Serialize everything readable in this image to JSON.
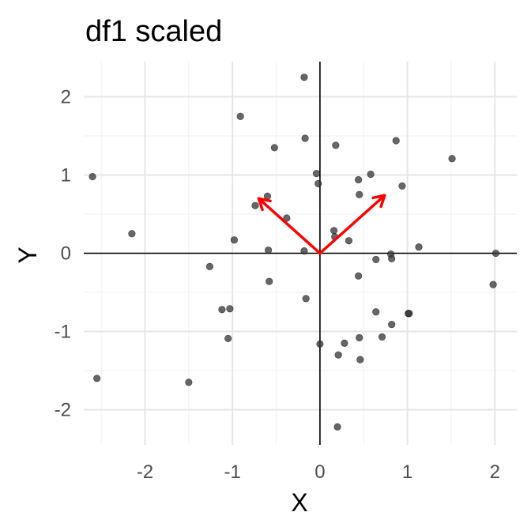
{
  "chart_data": {
    "type": "scatter",
    "title": "df1 scaled",
    "xlabel": "X",
    "ylabel": "Y",
    "xlim": [
      -2.7,
      2.25
    ],
    "ylim": [
      -2.45,
      2.45
    ],
    "x_ticks": [
      -2,
      -1,
      0,
      1,
      2
    ],
    "y_ticks": [
      -2,
      -1,
      0,
      1,
      2
    ],
    "x_tick_labels": [
      "-2",
      "-1",
      "0",
      "1",
      "2"
    ],
    "y_tick_labels": [
      "-2",
      "-1",
      "0",
      "1",
      "2"
    ],
    "grid": true,
    "reference_lines": {
      "x": 0,
      "y": 0
    },
    "point_color": "#333333",
    "arrow_color": "#ff0000",
    "points": [
      {
        "x": -2.6,
        "y": 0.98
      },
      {
        "x": -2.55,
        "y": -1.6
      },
      {
        "x": -2.15,
        "y": 0.25
      },
      {
        "x": -1.5,
        "y": -1.65
      },
      {
        "x": -1.26,
        "y": -0.17
      },
      {
        "x": -1.12,
        "y": -0.72
      },
      {
        "x": -1.03,
        "y": -0.71
      },
      {
        "x": -1.05,
        "y": -1.09
      },
      {
        "x": -0.98,
        "y": 0.17
      },
      {
        "x": -0.91,
        "y": 1.75
      },
      {
        "x": -0.74,
        "y": 0.61
      },
      {
        "x": -0.6,
        "y": 0.73
      },
      {
        "x": -0.59,
        "y": 0.04
      },
      {
        "x": -0.58,
        "y": -0.36
      },
      {
        "x": -0.52,
        "y": 1.35
      },
      {
        "x": -0.38,
        "y": 0.45
      },
      {
        "x": -0.18,
        "y": 2.25
      },
      {
        "x": -0.17,
        "y": 1.47
      },
      {
        "x": -0.18,
        "y": 0.03
      },
      {
        "x": -0.16,
        "y": -0.58
      },
      {
        "x": -0.04,
        "y": 1.02
      },
      {
        "x": -0.02,
        "y": 0.89
      },
      {
        "x": 0.0,
        "y": -1.16
      },
      {
        "x": 0.16,
        "y": 0.29
      },
      {
        "x": 0.17,
        "y": 0.21
      },
      {
        "x": 0.18,
        "y": 1.38
      },
      {
        "x": 0.21,
        "y": -1.3
      },
      {
        "x": 0.2,
        "y": -2.22
      },
      {
        "x": 0.28,
        "y": -1.15
      },
      {
        "x": 0.33,
        "y": 0.16
      },
      {
        "x": 0.44,
        "y": 0.94
      },
      {
        "x": 0.45,
        "y": 0.75
      },
      {
        "x": 0.44,
        "y": -0.29
      },
      {
        "x": 0.45,
        "y": -1.08
      },
      {
        "x": 0.46,
        "y": -1.36
      },
      {
        "x": 0.58,
        "y": 1.01
      },
      {
        "x": 0.64,
        "y": -0.08
      },
      {
        "x": 0.64,
        "y": -0.75
      },
      {
        "x": 0.71,
        "y": -1.07
      },
      {
        "x": 0.81,
        "y": -0.01
      },
      {
        "x": 0.82,
        "y": -0.07
      },
      {
        "x": 0.82,
        "y": -0.91
      },
      {
        "x": 0.87,
        "y": 1.44
      },
      {
        "x": 0.94,
        "y": 0.86
      },
      {
        "x": 1.01,
        "y": -0.77
      },
      {
        "x": 1.02,
        "y": -0.77
      },
      {
        "x": 1.13,
        "y": 0.08
      },
      {
        "x": 1.51,
        "y": 1.21
      },
      {
        "x": 1.98,
        "y": -0.4
      },
      {
        "x": 2.01,
        "y": 0.0
      }
    ],
    "arrows": [
      {
        "from": [
          0,
          0
        ],
        "to": [
          -0.7,
          0.7
        ]
      },
      {
        "from": [
          0,
          0
        ],
        "to": [
          0.74,
          0.74
        ]
      }
    ]
  }
}
